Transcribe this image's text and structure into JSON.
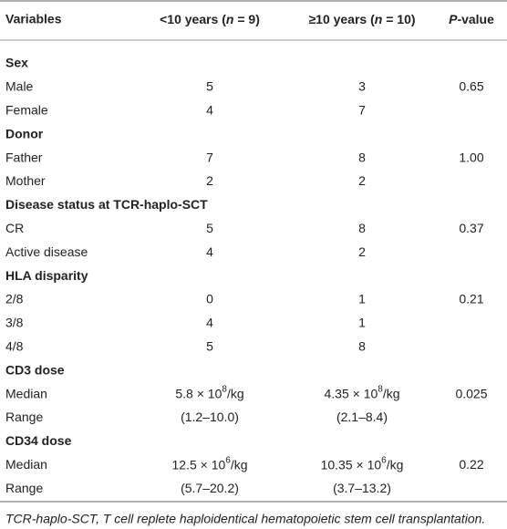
{
  "table": {
    "header": {
      "variables": "Variables",
      "group1": [
        "<10 years (",
        "n",
        " = 9)"
      ],
      "group2": [
        "≥10 years (",
        "n",
        " = 10)"
      ],
      "pvalue": [
        "P",
        "-value"
      ]
    },
    "sections": [
      {
        "title": "Sex",
        "p_value": "0.65",
        "rows": [
          [
            "Male",
            "5",
            "3"
          ],
          [
            "Female",
            "4",
            "7"
          ]
        ]
      },
      {
        "title": "Donor",
        "p_value": "1.00",
        "rows": [
          [
            "Father",
            "7",
            "8"
          ],
          [
            "Mother",
            "2",
            "2"
          ]
        ]
      },
      {
        "title": "Disease status at TCR-haplo-SCT",
        "p_value": "0.37",
        "rows": [
          [
            "CR",
            "5",
            "8"
          ],
          [
            "Active disease",
            "4",
            "2"
          ]
        ]
      },
      {
        "title": "HLA disparity",
        "p_value": "0.21",
        "rows": [
          [
            "2/8",
            "0",
            "1"
          ],
          [
            "3/8",
            "4",
            "1"
          ],
          [
            "4/8",
            "5",
            "8"
          ]
        ]
      },
      {
        "title": "CD3 dose",
        "p_value": "0.025",
        "rows": [
          [
            "Median",
            {
              "base": "5.8 × 10",
              "sup": "8",
              "unit": "/kg"
            },
            {
              "base": "4.35 × 10",
              "sup": "8",
              "unit": "/kg"
            }
          ],
          [
            "Range",
            "(1.2–10.0)",
            "(2.1–8.4)"
          ]
        ]
      },
      {
        "title": "CD34 dose",
        "p_value": "0.22",
        "rows": [
          [
            "Median",
            {
              "base": "12.5 × 10",
              "sup": "6",
              "unit": "/kg"
            },
            {
              "base": "10.35 × 10",
              "sup": "6",
              "unit": "/kg"
            }
          ],
          [
            "Range",
            "(5.7–20.2)",
            "(3.7–13.2)"
          ]
        ]
      }
    ]
  },
  "footnote": "TCR-haplo-SCT, T cell replete haploidentical hematopoietic stem cell transplantation."
}
